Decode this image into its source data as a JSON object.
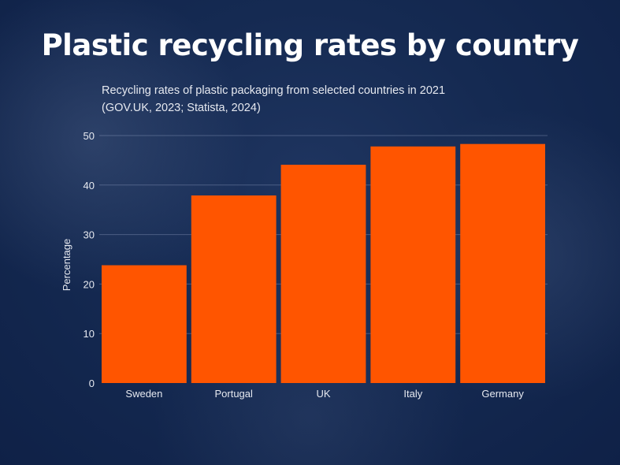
{
  "chart_data": {
    "type": "bar",
    "title": "Plastic recycling rates by country",
    "subtitle": [
      "Recycling rates of plastic packaging from selected countries in 2021",
      "(GOV.UK, 2023; Statista, 2024)"
    ],
    "xlabel": "",
    "ylabel": "Percentage",
    "categories": [
      "Sweden",
      "Portugal",
      "UK",
      "Italy",
      "Germany"
    ],
    "values": [
      23.8,
      37.9,
      44.1,
      47.8,
      48.3
    ],
    "ylim": [
      0,
      50
    ],
    "yticks": [
      0,
      10,
      20,
      30,
      40,
      50
    ],
    "grid": true,
    "bar_color": "#ff5500"
  }
}
